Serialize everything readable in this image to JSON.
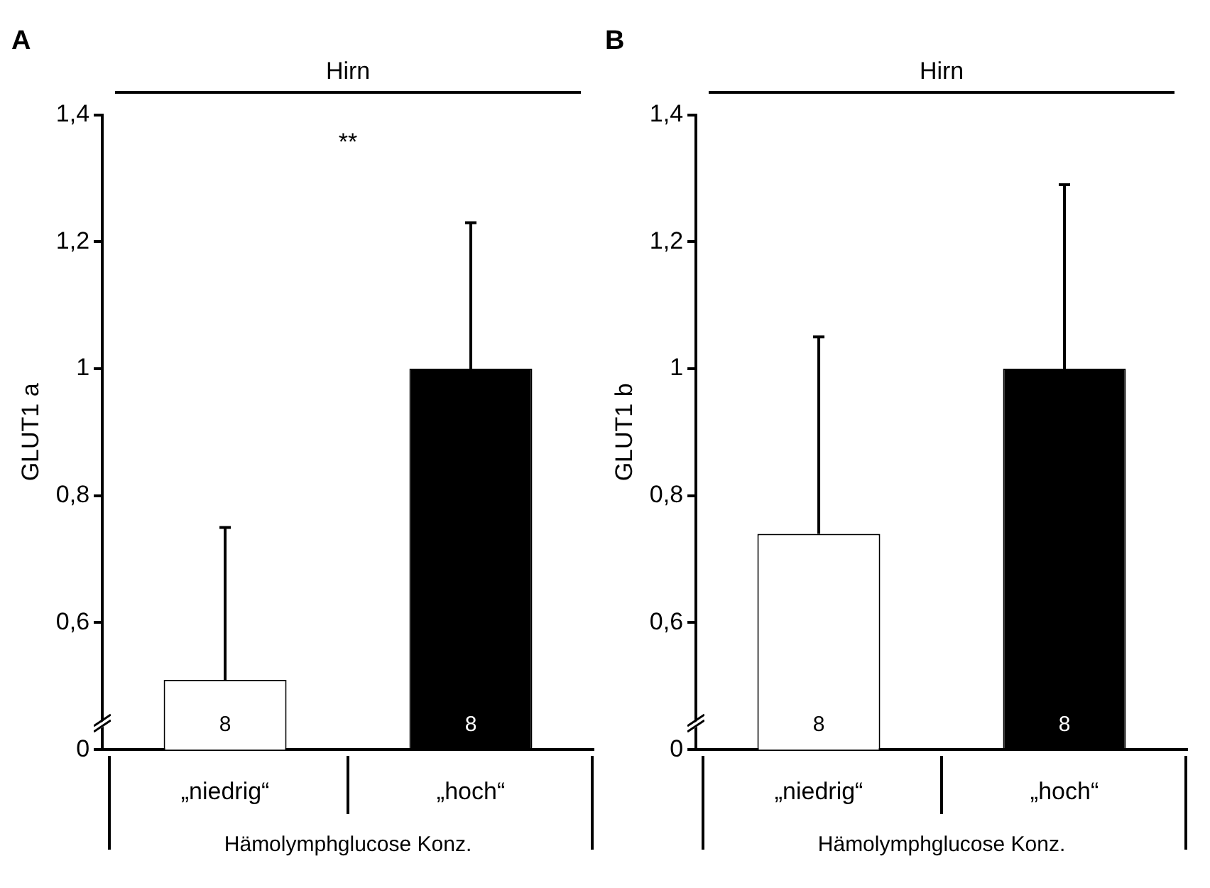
{
  "chart_data": [
    {
      "type": "bar",
      "title": "A",
      "ylabel": "GLUT1 a",
      "xlabel": "Hämolymphglucose Konz.",
      "categories": [
        "„niedrig“",
        "„hoch“"
      ],
      "values": [
        0.51,
        1
      ],
      "colors": [
        "#ffffff",
        "#000000"
      ],
      "errors": [
        [
          0.51,
          0.75
        ],
        [
          1,
          1.23
        ]
      ],
      "ylim": [
        0.4,
        1.4
      ],
      "yticks": [
        {
          "value": 0.4,
          "label": "0"
        },
        {
          "value": 0.6,
          "label": "0,6"
        },
        {
          "value": 0.8,
          "label": "0,8"
        },
        1,
        {
          "value": 1.2,
          "label": "1,2"
        },
        {
          "value": 1.4,
          "label": "1,4"
        }
      ],
      "annotations": [
        "Hirn",
        "**",
        "8",
        "8"
      ]
    },
    {
      "type": "bar",
      "title": "B",
      "ylabel": "GLUT1 b",
      "xlabel": "Hämolymphglucose Konz.",
      "categories": [
        "„niedrig“",
        "„hoch“"
      ],
      "values": [
        0.74,
        1
      ],
      "colors": [
        "#ffffff",
        "#000000"
      ],
      "errors": [
        [
          0.74,
          1.05
        ],
        [
          1,
          1.29
        ]
      ],
      "ylim": [
        0.4,
        1.4
      ],
      "yticks": [
        {
          "value": 0.4,
          "label": "0"
        },
        {
          "value": 0.6,
          "label": "0,6"
        },
        {
          "value": 0.8,
          "label": "0,8"
        },
        1,
        {
          "value": 1.2,
          "label": "1,2"
        },
        {
          "value": 1.4,
          "label": "1,4"
        }
      ],
      "annotations": [
        "Hirn",
        "8",
        "8"
      ]
    }
  ]
}
